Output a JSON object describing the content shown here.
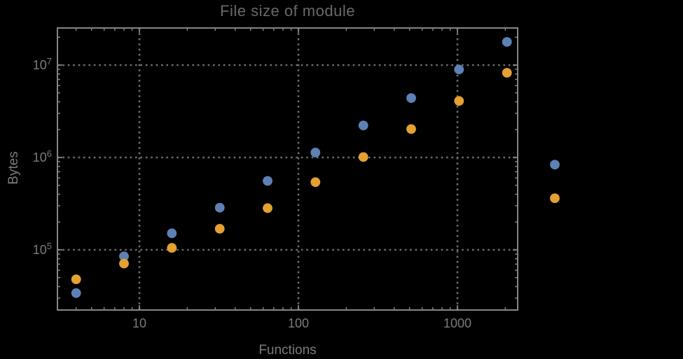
{
  "title": "File size of module",
  "chart_data": {
    "type": "scatter",
    "title": "File size of module",
    "xlabel": "Functions",
    "ylabel": "Bytes",
    "x_scale": "log",
    "y_scale": "log",
    "x_range": [
      3,
      2400
    ],
    "y_range": [
      22500,
      24500000
    ],
    "x_ticks": [
      {
        "value": 10,
        "label": "10"
      },
      {
        "value": 100,
        "label": "100"
      },
      {
        "value": 1000,
        "label": "1000"
      }
    ],
    "y_ticks": [
      {
        "value": 100000,
        "base": "10",
        "exponent": "5"
      },
      {
        "value": 1000000,
        "base": "10",
        "exponent": "6"
      },
      {
        "value": 10000000,
        "base": "10",
        "exponent": "7"
      }
    ],
    "grid": {
      "style": "dotted",
      "x_values": [
        10,
        100,
        1000
      ],
      "y_values": [
        100000,
        1000000,
        10000000
      ]
    },
    "legend": "none",
    "series": [
      {
        "name": "series-1",
        "color": "#5E81B5",
        "points": [
          [
            4,
            34000
          ],
          [
            8,
            85000
          ],
          [
            16,
            151000
          ],
          [
            32,
            286000
          ],
          [
            64,
            557000
          ],
          [
            128,
            1130000
          ],
          [
            256,
            2220000
          ],
          [
            512,
            4400000
          ],
          [
            1024,
            8960000
          ],
          [
            2048,
            17800000
          ],
          [
            4096,
            835000
          ]
        ]
      },
      {
        "name": "series-2",
        "color": "#E4A030",
        "points": [
          [
            4,
            48000
          ],
          [
            8,
            71000
          ],
          [
            16,
            105000
          ],
          [
            32,
            169000
          ],
          [
            64,
            283000
          ],
          [
            128,
            540000
          ],
          [
            256,
            1010000
          ],
          [
            512,
            2030000
          ],
          [
            1024,
            4090000
          ],
          [
            2048,
            8250000
          ],
          [
            4096,
            362000
          ]
        ]
      }
    ]
  },
  "colors": {
    "background": "#000000",
    "frame": "#868686",
    "gridline": "#6e6e6e",
    "title_text": "#696969",
    "label_text": "#7b7b7b",
    "series1": "#5E81B5",
    "series2": "#E4A030"
  }
}
